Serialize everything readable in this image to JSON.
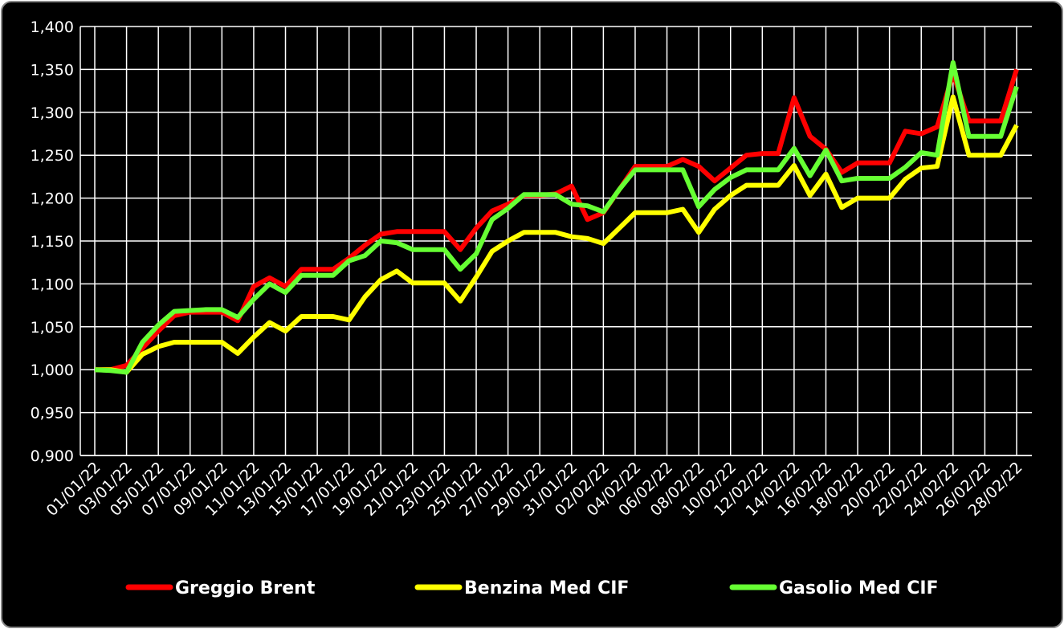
{
  "chart_data": {
    "type": "line",
    "categories": [
      "01/01/22",
      null,
      "03/01/22",
      null,
      "05/01/22",
      null,
      "07/01/22",
      null,
      "09/01/22",
      null,
      "11/01/22",
      null,
      "13/01/22",
      null,
      "15/01/22",
      null,
      "17/01/22",
      null,
      "19/01/22",
      null,
      "21/01/22",
      null,
      "23/01/22",
      null,
      "25/01/22",
      null,
      "27/01/22",
      null,
      "29/01/22",
      null,
      "31/01/22",
      null,
      "02/02/22",
      null,
      "04/02/22",
      null,
      "06/02/22",
      null,
      "08/02/22",
      null,
      "10/02/22",
      null,
      "12/02/22",
      null,
      "14/02/22",
      null,
      "16/02/22",
      null,
      "18/02/22",
      null,
      "20/02/22",
      null,
      "22/02/22",
      null,
      "24/02/22",
      null,
      "26/02/22",
      null,
      "28/02/22"
    ],
    "series": [
      {
        "name": "Greggio Brent",
        "color": "#ff0000",
        "values": [
          1.0,
          1.0,
          1.005,
          1.025,
          1.045,
          1.063,
          1.067,
          1.067,
          1.067,
          1.057,
          1.097,
          1.107,
          1.097,
          1.117,
          1.117,
          1.117,
          1.13,
          1.145,
          1.158,
          1.161,
          1.161,
          1.161,
          1.161,
          1.14,
          1.165,
          1.185,
          1.193,
          1.203,
          1.203,
          1.205,
          1.214,
          1.175,
          1.183,
          1.21,
          1.237,
          1.237,
          1.237,
          1.245,
          1.237,
          1.22,
          1.235,
          1.25,
          1.252,
          1.252,
          1.317,
          1.272,
          1.257,
          1.23,
          1.241,
          1.241,
          1.241,
          1.278,
          1.275,
          1.283,
          1.345,
          1.29,
          1.29,
          1.29,
          1.35
        ]
      },
      {
        "name": "Benzina Med CIF",
        "color": "#ffff00",
        "values": [
          1.0,
          1.0,
          0.997,
          1.018,
          1.027,
          1.032,
          1.032,
          1.032,
          1.032,
          1.019,
          1.038,
          1.055,
          1.045,
          1.062,
          1.062,
          1.062,
          1.058,
          1.085,
          1.105,
          1.115,
          1.101,
          1.101,
          1.101,
          1.08,
          1.108,
          1.138,
          1.15,
          1.16,
          1.16,
          1.16,
          1.155,
          1.153,
          1.147,
          1.165,
          1.183,
          1.183,
          1.183,
          1.187,
          1.16,
          1.187,
          1.203,
          1.215,
          1.215,
          1.215,
          1.238,
          1.203,
          1.228,
          1.189,
          1.2,
          1.2,
          1.2,
          1.222,
          1.235,
          1.237,
          1.318,
          1.25,
          1.25,
          1.25,
          1.285
        ]
      },
      {
        "name": "Gasolio Med CIF",
        "color": "#66ff33",
        "values": [
          1.0,
          0.999,
          0.997,
          1.032,
          1.052,
          1.068,
          1.069,
          1.07,
          1.07,
          1.061,
          1.082,
          1.1,
          1.09,
          1.11,
          1.11,
          1.11,
          1.127,
          1.133,
          1.15,
          1.148,
          1.14,
          1.14,
          1.14,
          1.117,
          1.135,
          1.175,
          1.188,
          1.204,
          1.204,
          1.204,
          1.193,
          1.191,
          1.184,
          1.21,
          1.233,
          1.233,
          1.233,
          1.233,
          1.19,
          1.21,
          1.224,
          1.233,
          1.233,
          1.233,
          1.258,
          1.226,
          1.256,
          1.22,
          1.223,
          1.223,
          1.223,
          1.236,
          1.253,
          1.25,
          1.358,
          1.272,
          1.272,
          1.272,
          1.33
        ]
      }
    ],
    "ylim": [
      0.9,
      1.4
    ],
    "yticks": [
      {
        "value": 0.9,
        "label": "0,900"
      },
      {
        "value": 0.95,
        "label": "0,950"
      },
      {
        "value": 1.0,
        "label": "1,000"
      },
      {
        "value": 1.05,
        "label": "1,050"
      },
      {
        "value": 1.1,
        "label": "1,100"
      },
      {
        "value": 1.15,
        "label": "1,150"
      },
      {
        "value": 1.2,
        "label": "1,200"
      },
      {
        "value": 1.25,
        "label": "1,250"
      },
      {
        "value": 1.3,
        "label": "1,300"
      },
      {
        "value": 1.35,
        "label": "1,350"
      },
      {
        "value": 1.4,
        "label": "1,400"
      }
    ],
    "grid": true,
    "legend": "bottom"
  }
}
